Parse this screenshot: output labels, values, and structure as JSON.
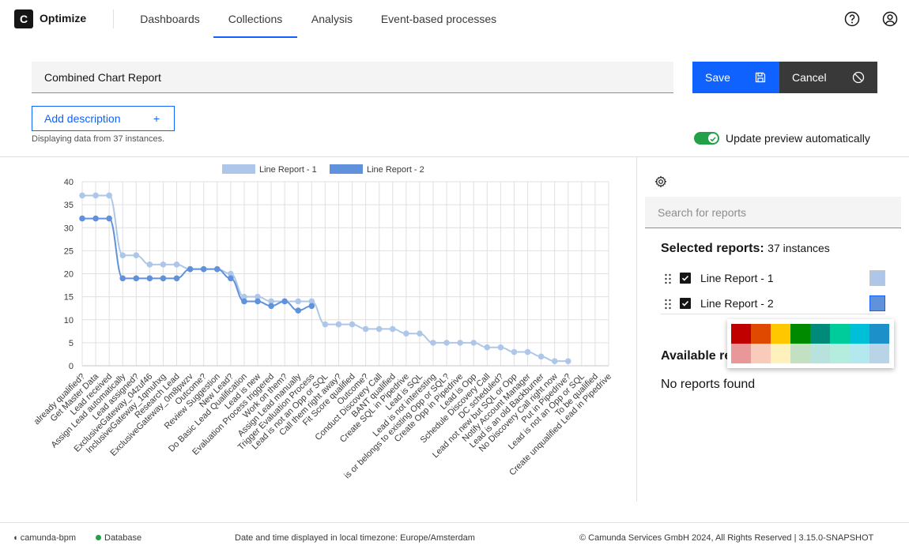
{
  "app": {
    "logo_letter": "C",
    "name": "Optimize"
  },
  "nav": {
    "tabs": [
      {
        "label": "Dashboards"
      },
      {
        "label": "Collections",
        "active": true
      },
      {
        "label": "Analysis"
      },
      {
        "label": "Event-based processes"
      }
    ]
  },
  "header_icons": [
    "help-icon",
    "user-icon"
  ],
  "report": {
    "name": "Combined Chart Report",
    "save_label": "Save",
    "cancel_label": "Cancel",
    "add_description_label": "Add description",
    "add_description_icon": "+",
    "instances_note": "Displaying data from 37 instances.",
    "auto_update_label": "Update preview automatically",
    "auto_update_on": true
  },
  "side_panel": {
    "search_placeholder": "Search for reports",
    "selected_title": "Selected reports:",
    "selected_count": "37 instances",
    "selected_reports": [
      {
        "label": "Line Report - 1",
        "checked": true,
        "color": "#aec7e8"
      },
      {
        "label": "Line Report - 2",
        "checked": true,
        "color": "#6092dc"
      }
    ],
    "available_title": "Available re",
    "no_reports": "No reports found",
    "palette": [
      [
        "#c00000",
        "#e04a00",
        "#ffc700",
        "#008a00",
        "#008a7a",
        "#00cc9b",
        "#00bfd6",
        "#1c91c9"
      ],
      [
        "#e89898",
        "#f8cbbb",
        "#fff1bb",
        "#c3e0c3",
        "#b8e2dd",
        "#b4ecdd",
        "#b3e8ef",
        "#b9d4e6"
      ]
    ]
  },
  "footer": {
    "engine": "camunda-bpm",
    "database": "Database",
    "timezone": "Date and time displayed in local timezone: Europe/Amsterdam",
    "copyright": "© Camunda Services GmbH 2024, All Rights Reserved | 3.15.0-SNAPSHOT",
    "status_color": "#24a148"
  },
  "chart_data": {
    "type": "line",
    "categories": [
      "already qualified?",
      "Get Master Data",
      "Lead received",
      "Assign Lead automatically",
      "Lead assigned?",
      "ExclusiveGateway_04zuf46",
      "InclusiveGateway_1qmuhxg",
      "Research Lead",
      "ExclusiveGateway_0m8pwzv",
      "Outcome?",
      "Review Suggestion",
      "New Lead?",
      "Do Basic Lead Qualification",
      "Lead is new",
      "Evaluation Process triggered",
      "Work on them?",
      "Assign Lead manually",
      "Trigger Evaluation Process",
      "Lead is not an Opp or SQL",
      "Call them right away?",
      "Fit Score qualified",
      "Outcome?",
      "Conduct Discovery Call",
      "BANT qualified",
      "Create SQL in Pipedrive",
      "Lead is SQL",
      "Lead is not interesting",
      "is or belongs to existing Opp or SQL?",
      "Create Opp in Pipedrive",
      "Lead is Opp",
      "Schedule Discovery Call",
      "DC scheduled?",
      "Lead not new but SQL or Opp",
      "Notify Account Manager",
      "Lead is an old Backburner",
      "No Discovery Call right now",
      "Put in Pipedrive?",
      "Lead is not an Opp or SQL",
      "To be qualified",
      "Create unqualified Lead in Pipedrive"
    ],
    "series": [
      {
        "name": "Line Report - 1",
        "color": "#aec7e8",
        "values": [
          37,
          37,
          37,
          24,
          24,
          22,
          22,
          22,
          21,
          21,
          21,
          20,
          15,
          15,
          14,
          14,
          14,
          14,
          9,
          9,
          9,
          8,
          8,
          8,
          7,
          7,
          5,
          5,
          5,
          5,
          4,
          4,
          3,
          3,
          2,
          1,
          1,
          null,
          null,
          null
        ]
      },
      {
        "name": "Line Report - 2",
        "color": "#6092dc",
        "values": [
          32,
          32,
          32,
          19,
          19,
          19,
          19,
          19,
          21,
          21,
          21,
          19,
          14,
          14,
          13,
          14,
          12,
          13,
          null,
          null,
          null,
          null,
          null,
          null,
          null,
          null,
          null,
          null,
          null,
          null,
          null,
          null,
          null,
          null,
          null,
          null,
          null,
          null,
          null,
          null
        ]
      }
    ],
    "yticks": [
      "0",
      "5",
      "10",
      "15",
      "20",
      "25",
      "30",
      "35",
      "40"
    ],
    "ylim": [
      0,
      40
    ],
    "grid": true,
    "legend": "top"
  }
}
